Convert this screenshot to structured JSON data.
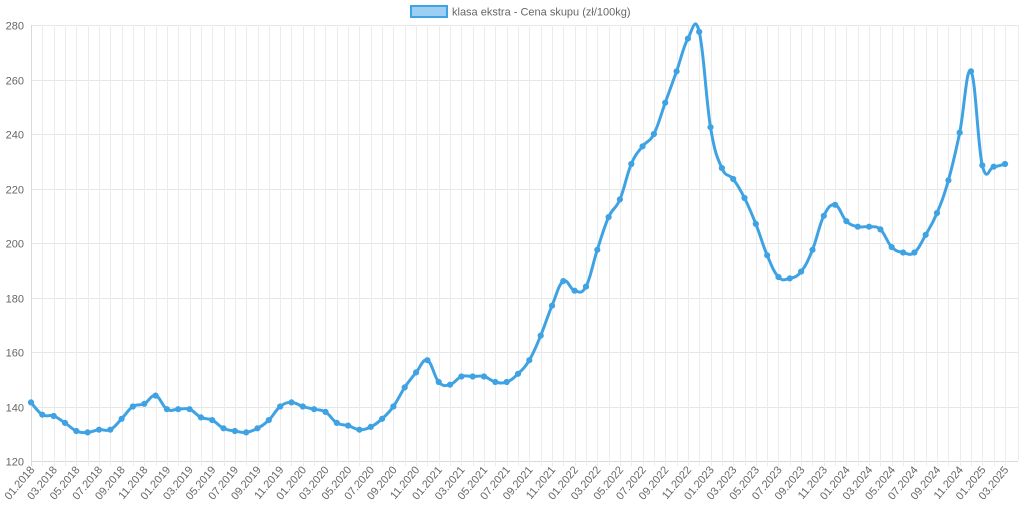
{
  "chart_data": {
    "type": "line",
    "legend_position": "top",
    "grid": true,
    "series": [
      {
        "name": "klasa ekstra - Cena skupu (zł/100kg)",
        "color": "#3fa3e3",
        "fill_color": "#9ccff2",
        "values": [
          141.5,
          137,
          136.5,
          134,
          131,
          130.5,
          131.5,
          131.5,
          135.5,
          140,
          141,
          144,
          139,
          139,
          139,
          136,
          135,
          132,
          131,
          130.5,
          132,
          135,
          140,
          141.5,
          140,
          139,
          138,
          134,
          133,
          131.5,
          132.5,
          135.5,
          140,
          147,
          152.5,
          157,
          149,
          148,
          151,
          151,
          151,
          149,
          149,
          152,
          157,
          166,
          177,
          186,
          182.5,
          184,
          197.5,
          209.5,
          216,
          229,
          235.5,
          240,
          251.5,
          263,
          275,
          277.5,
          242.5,
          227.5,
          223.5,
          216.5,
          207,
          195.5,
          187.5,
          187,
          189.5,
          197.5,
          210,
          214,
          208,
          206,
          206,
          205,
          198.5,
          196.5,
          196.5,
          203,
          211,
          223,
          240.5,
          263,
          228.5,
          228,
          229
        ]
      }
    ],
    "x_start": "01.2018",
    "x_end": "03.2025",
    "x_tick_labels": [
      "01.2018",
      "03.2018",
      "05.2018",
      "07.2018",
      "09.2018",
      "11.2018",
      "01.2019",
      "03.2019",
      "05.2019",
      "07.2019",
      "09.2019",
      "11.2019",
      "01.2020",
      "03.2020",
      "05.2020",
      "07.2020",
      "09.2020",
      "11.2020",
      "01.2021",
      "03.2021",
      "05.2021",
      "07.2021",
      "09.2021",
      "11.2021",
      "01.2022",
      "03.2022",
      "05.2022",
      "07.2022",
      "09.2022",
      "11.2022",
      "01.2023",
      "03.2023",
      "05.2023",
      "07.2023",
      "09.2023",
      "11.2023",
      "01.2024",
      "03.2024",
      "05.2024",
      "07.2024",
      "09.2024",
      "11.2024",
      "01.2025",
      "03.2025"
    ],
    "y_ticks": [
      "120",
      "140",
      "160",
      "180",
      "200",
      "220",
      "240",
      "260",
      "280"
    ],
    "ylim": [
      120,
      280
    ]
  }
}
